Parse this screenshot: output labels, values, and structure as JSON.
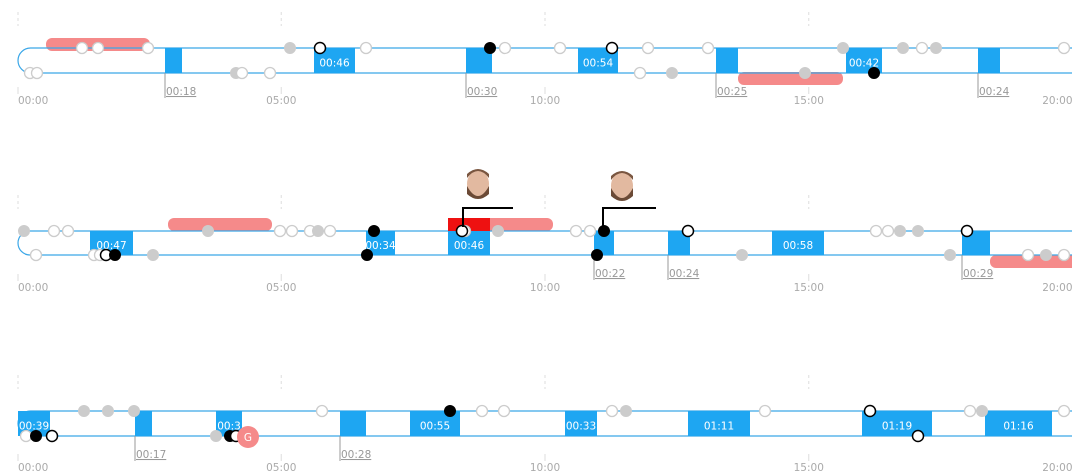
{
  "rows": [
    {
      "axis_labels": [
        "00:00",
        "05:00",
        "10:00",
        "15:00",
        "20:00"
      ],
      "durations": [
        "00:18",
        "00:46",
        "00:30",
        "00:54",
        "00:25",
        "00:42",
        "00:24"
      ]
    },
    {
      "axis_labels": [
        "00:00",
        "05:00",
        "10:00",
        "15:00",
        "20:00"
      ],
      "durations": [
        "00:47",
        "00:34",
        "00:46",
        "00:22",
        "00:24",
        "00:58",
        "00:29"
      ]
    },
    {
      "axis_labels": [
        "00:00",
        "05:00",
        "10:00",
        "15:00",
        "20:00"
      ],
      "durations": [
        "00:39",
        "00:17",
        "00:3",
        "00:28",
        "00:55",
        "00:33",
        "01:11",
        "01:19",
        "01:16"
      ]
    }
  ],
  "marker": "G"
}
